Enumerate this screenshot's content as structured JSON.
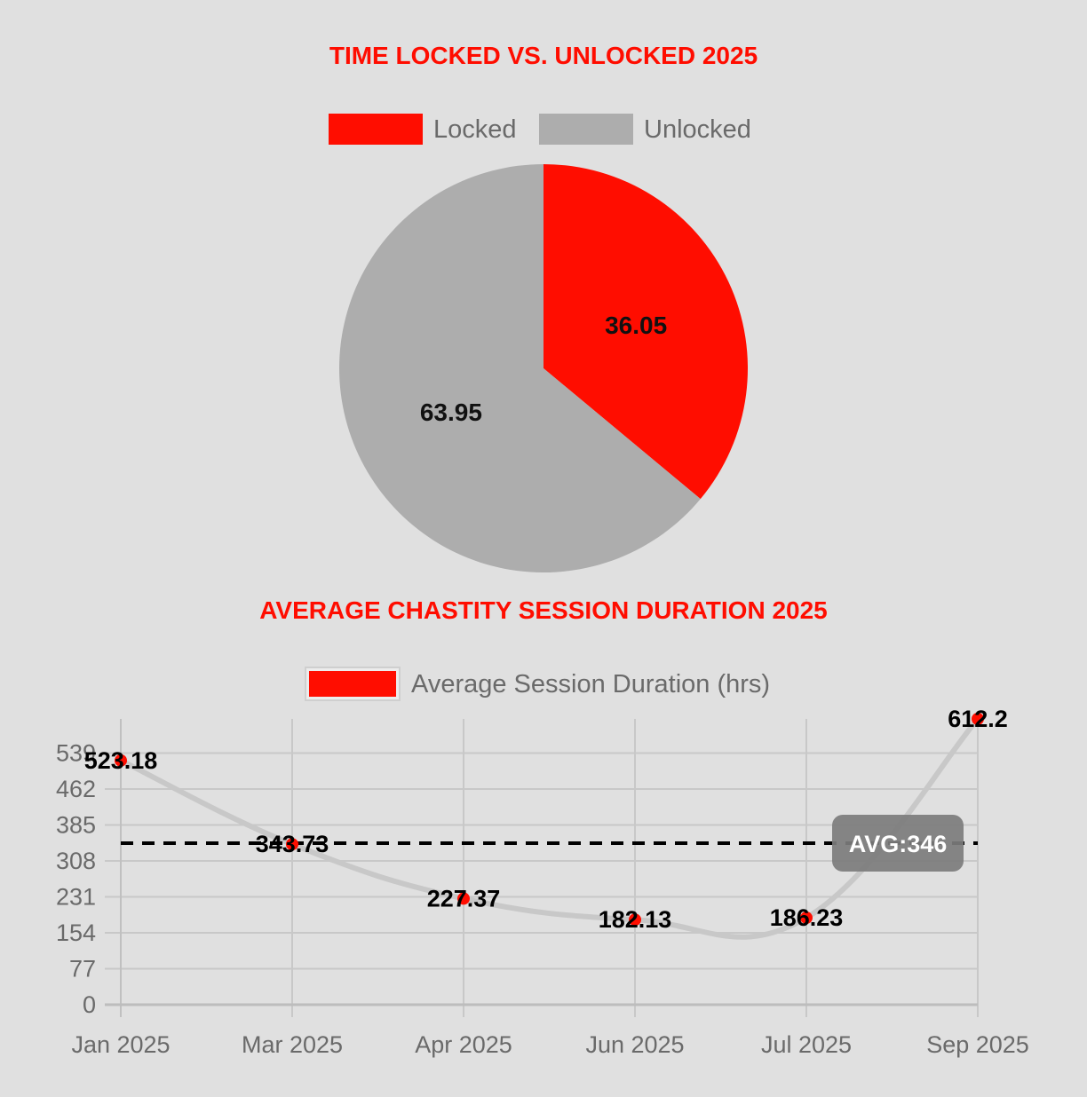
{
  "chart_data": [
    {
      "type": "pie",
      "title": "TIME LOCKED VS. UNLOCKED 2025",
      "legend_position": "top",
      "categories": [
        "Locked",
        "Unlocked"
      ],
      "values": [
        36.05,
        63.95
      ],
      "value_labels": [
        "36.05",
        "63.95"
      ],
      "colors": [
        "#ff0d00",
        "#adadad"
      ]
    },
    {
      "type": "line",
      "title": "AVERAGE CHASTITY SESSION DURATION 2025",
      "legend_position": "top",
      "categories": [
        "Jan 2025",
        "Mar 2025",
        "Apr 2025",
        "Jun 2025",
        "Jul 2025",
        "Sep 2025"
      ],
      "series": [
        {
          "name": "Average Session Duration (hrs)",
          "values": [
            523.18,
            343.73,
            227.37,
            182.13,
            186.23,
            612.2
          ],
          "value_labels": [
            "523.18",
            "343.73",
            "227.37",
            "182.13",
            "186.23",
            "612.2"
          ],
          "color": "#ff0d00",
          "line_color": "#c8c8c8"
        }
      ],
      "yticks": [
        0,
        77,
        154,
        231,
        308,
        385,
        462,
        539
      ],
      "ytick_labels": [
        "0",
        "77",
        "154",
        "231",
        "308",
        "385",
        "462",
        "539"
      ],
      "ylim": [
        0,
        612.2
      ],
      "grid": true,
      "average": {
        "value": 346,
        "label": "AVG:346"
      }
    }
  ]
}
